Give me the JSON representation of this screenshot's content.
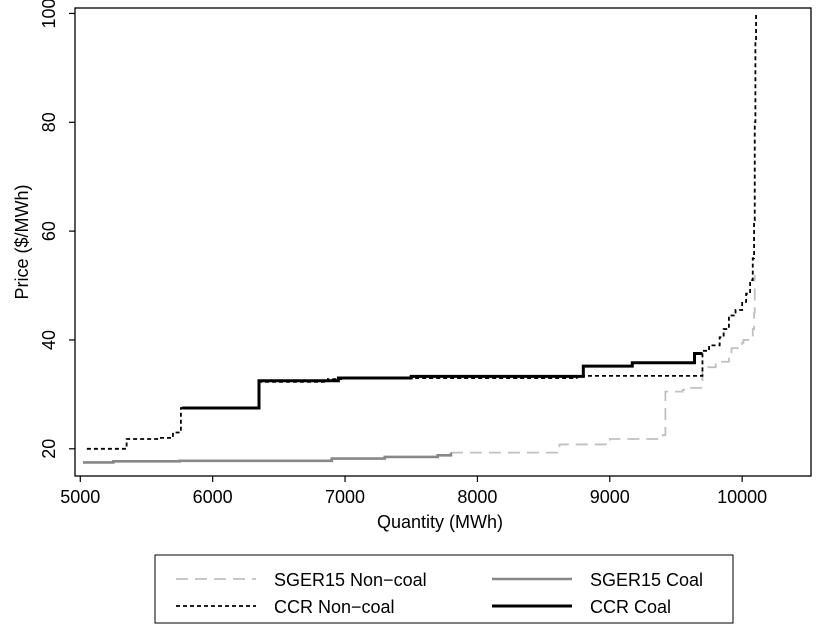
{
  "chart_data": {
    "type": "line",
    "title": "",
    "xlabel": "Quantity (MWh)",
    "ylabel": "Price ($/MWh)",
    "xlim": [
      4960,
      10520
    ],
    "ylim": [
      15,
      101
    ],
    "xticks": [
      5000,
      6000,
      7000,
      8000,
      9000,
      10000
    ],
    "yticks": [
      20,
      40,
      60,
      80,
      100
    ],
    "grid": false,
    "legend_position": "bottom-outside",
    "series": [
      {
        "name": "SGER15 Non−coal",
        "color": "#c0c0c0",
        "style": "dashed",
        "step": true,
        "x": [
          7800,
          8600,
          8620,
          8980,
          9000,
          9380,
          9400,
          9420,
          9550,
          9560,
          9680,
          9700,
          9800,
          9820,
          9900,
          9920,
          10000,
          10010,
          10060,
          10080,
          10090,
          10095
        ],
        "y": [
          19.3,
          19.3,
          20.8,
          20.8,
          21.8,
          21.8,
          22.5,
          30.5,
          30.8,
          31.2,
          31.2,
          35.0,
          35.5,
          36.0,
          37.5,
          38.5,
          39.5,
          40.0,
          40.5,
          42.0,
          45.0,
          52.0
        ]
      },
      {
        "name": "SGER15 Coal",
        "color": "#888888",
        "style": "solid",
        "step": true,
        "x": [
          5020,
          5250,
          5750,
          6900,
          7300,
          7700,
          7800
        ],
        "y": [
          17.5,
          17.7,
          17.8,
          18.2,
          18.5,
          18.8,
          19.3
        ]
      },
      {
        "name": "CCR Non−coal",
        "color": "#000000",
        "style": "dotted",
        "step": true,
        "x": [
          5050,
          5310,
          5350,
          5600,
          5700,
          5760,
          6330,
          6350,
          6850,
          6870,
          6950,
          6970,
          8750,
          9700,
          9750,
          9830,
          9860,
          9900,
          9950,
          10000,
          10030,
          10060,
          10080,
          10090,
          10095,
          10100,
          10105
        ],
        "y": [
          20.0,
          20.0,
          21.8,
          22.0,
          23.0,
          27.5,
          27.5,
          32.3,
          32.3,
          32.8,
          32.8,
          33.0,
          33.4,
          38.0,
          39.0,
          40.5,
          42.0,
          44.5,
          45.5,
          47.0,
          48.5,
          51.0,
          55.0,
          62.0,
          80.0,
          95.0,
          100.0
        ]
      },
      {
        "name": "CCR Coal",
        "color": "#000000",
        "style": "solid",
        "step": true,
        "x": [
          5770,
          6330,
          6350,
          6850,
          6950,
          7500,
          8780,
          8800,
          9150,
          9170,
          9620,
          9640,
          9700
        ],
        "y": [
          27.5,
          27.5,
          32.5,
          32.5,
          33.0,
          33.3,
          33.3,
          35.2,
          35.2,
          35.8,
          35.8,
          37.5,
          37.5
        ]
      }
    ]
  }
}
